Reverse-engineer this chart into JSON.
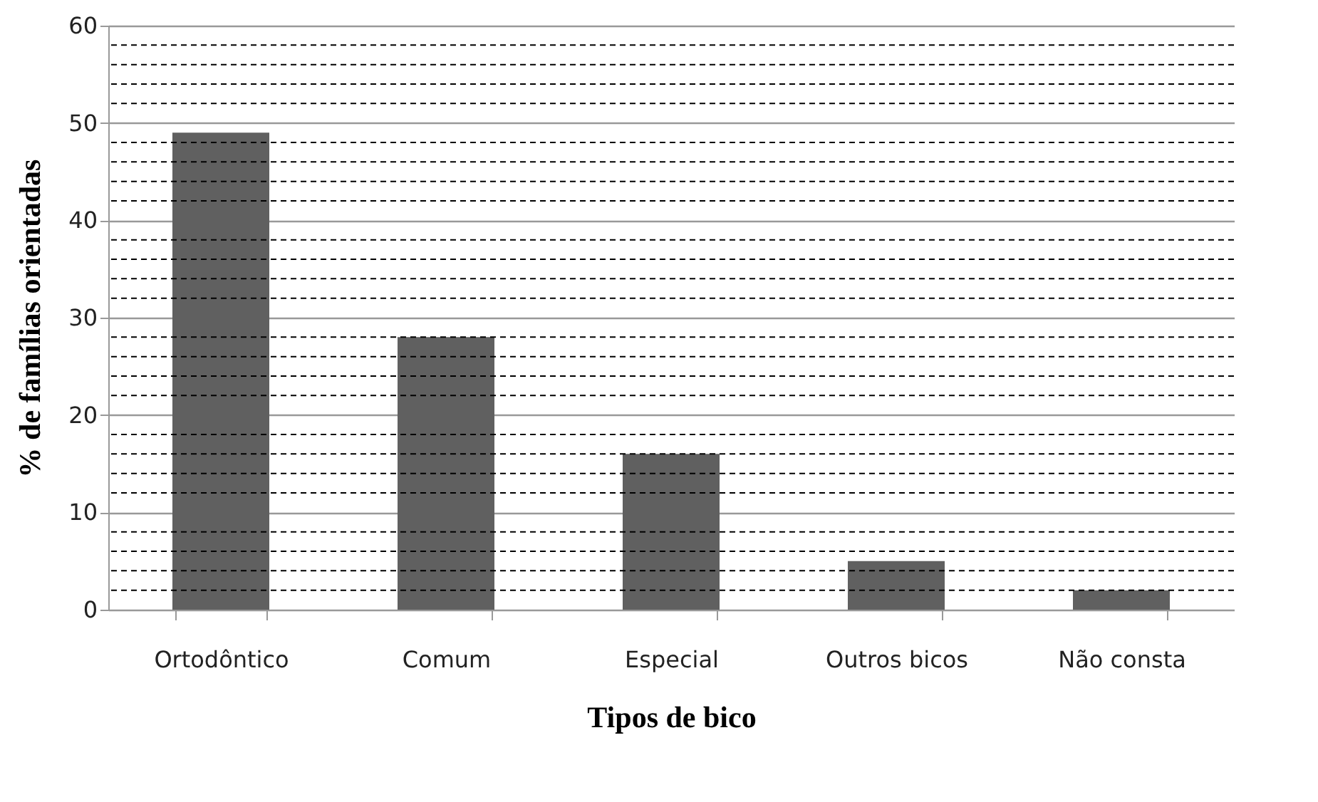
{
  "chart_data": {
    "type": "bar",
    "xlabel": "Tipos de bico",
    "ylabel": "% de famílias orientadas",
    "categories": [
      "Ortodôntico",
      "Comum",
      "Especial",
      "Outros bicos",
      "Não consta"
    ],
    "values": [
      49,
      28,
      16,
      5,
      2
    ],
    "color": "#606060",
    "ylim": [
      0,
      60
    ],
    "yticks": [
      0,
      10,
      20,
      30,
      40,
      50,
      60
    ],
    "grid": "y"
  }
}
